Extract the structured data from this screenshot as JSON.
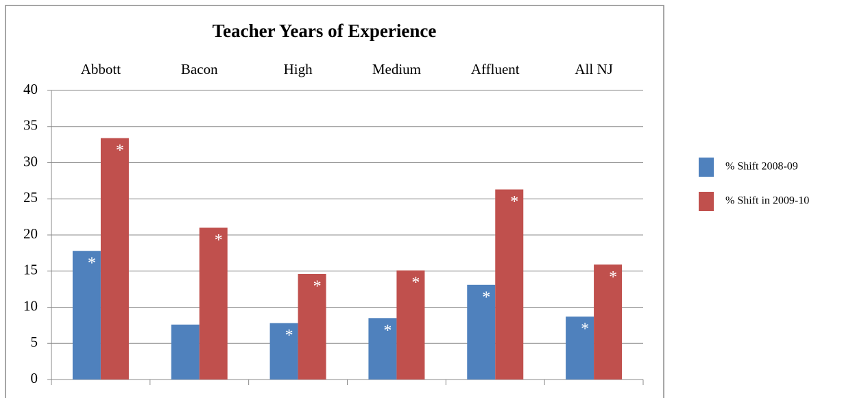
{
  "chart_data": {
    "type": "bar",
    "title": "Teacher Years of Experience",
    "categories": [
      "Abbott",
      "Bacon",
      "High",
      "Medium",
      "Affluent",
      "All NJ"
    ],
    "series": [
      {
        "name": "% Shift 2008-09",
        "color": "#4f81bd",
        "values": [
          17.8,
          7.6,
          7.8,
          8.5,
          13.1,
          8.7
        ],
        "annotations": [
          "*",
          null,
          "*",
          "*",
          "*",
          "*"
        ]
      },
      {
        "name": "% Shift in 2009-10",
        "color": "#c0504d",
        "values": [
          33.4,
          21.0,
          14.6,
          15.1,
          26.3,
          15.9
        ],
        "annotations": [
          "*",
          "*",
          "*",
          "*",
          "*",
          "*"
        ]
      }
    ],
    "ylim": [
      0,
      40
    ],
    "yticks": [
      0,
      5,
      10,
      15,
      20,
      25,
      30,
      35,
      40
    ],
    "grid": true,
    "legend": "right"
  }
}
